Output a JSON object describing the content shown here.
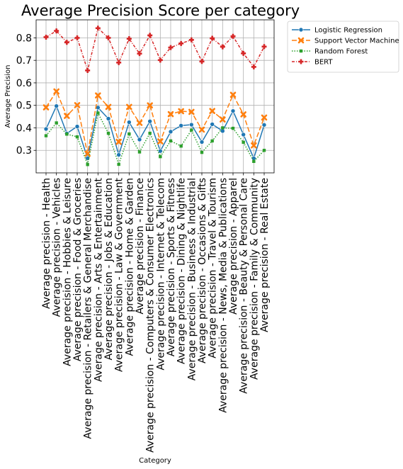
{
  "chart_data": {
    "type": "line",
    "title": "Average Precision Score per category",
    "xlabel": "Category",
    "ylabel": "Average Precision",
    "ylim": [
      0.2,
      0.88
    ],
    "yticks": [
      "0.3",
      "0.4",
      "0.5",
      "0.6",
      "0.7",
      "0.8"
    ],
    "grid": true,
    "legend_position": "outside-top-right",
    "categories": [
      "Average precision - Health",
      "Average precision - Vehicles",
      "Average precision - Hobbies & Leisure",
      "Average precision - Food & Groceries",
      "Average precision - Retailers & General Merchandise",
      "Average precision - Arts & Entertainment",
      "Average precision - Jobs & Education",
      "Average precision - Law & Government",
      "Average precision - Home & Garden",
      "Average precision - Finance",
      "Average precision - Computers & Consumer Electronics",
      "Average precision - Internet & Telecom",
      "Average precision - Sports & Fitness",
      "Average precision - Dining & Nightlife",
      "Average precision - Business & Industrial",
      "Average precision - Occasions & Gifts",
      "Average precision - Travel & Tourism",
      "Average precision - News, Media & Publications",
      "Average precision - Apparel",
      "Average precision - Beauty & Personal Care",
      "Average precision - Family & Community",
      "Average precision - Real Estate"
    ],
    "series": [
      {
        "name": "Logistic Regression",
        "color": "#1f77b4",
        "dash": "",
        "marker": "circle",
        "values": [
          0.395,
          0.497,
          0.375,
          0.406,
          0.265,
          0.49,
          0.441,
          0.28,
          0.425,
          0.348,
          0.429,
          0.297,
          0.383,
          0.41,
          0.414,
          0.337,
          0.416,
          0.386,
          0.475,
          0.37,
          0.265,
          0.413
        ]
      },
      {
        "name": "Support Vector Machine",
        "color": "#ff7f0e",
        "dash": "7,3",
        "marker": "x",
        "values": [
          0.491,
          0.562,
          0.453,
          0.501,
          0.285,
          0.544,
          0.493,
          0.338,
          0.493,
          0.422,
          0.5,
          0.34,
          0.461,
          0.474,
          0.471,
          0.392,
          0.475,
          0.437,
          0.547,
          0.46,
          0.322,
          0.446
        ]
      },
      {
        "name": "Random Forest",
        "color": "#2ca02c",
        "dash": "1.5,2",
        "marker": "square",
        "values": [
          0.365,
          0.422,
          0.372,
          0.36,
          0.237,
          0.466,
          0.376,
          0.238,
          0.373,
          0.293,
          0.376,
          0.272,
          0.342,
          0.319,
          0.39,
          0.291,
          0.342,
          0.4,
          0.398,
          0.336,
          0.251,
          0.3
        ]
      },
      {
        "name": "BERT",
        "color": "#d62728",
        "dash": "4,2,1,2",
        "marker": "plus",
        "values": [
          0.803,
          0.831,
          0.78,
          0.8,
          0.655,
          0.843,
          0.8,
          0.69,
          0.796,
          0.73,
          0.811,
          0.701,
          0.757,
          0.775,
          0.791,
          0.695,
          0.798,
          0.76,
          0.807,
          0.731,
          0.671,
          0.761
        ]
      }
    ]
  }
}
